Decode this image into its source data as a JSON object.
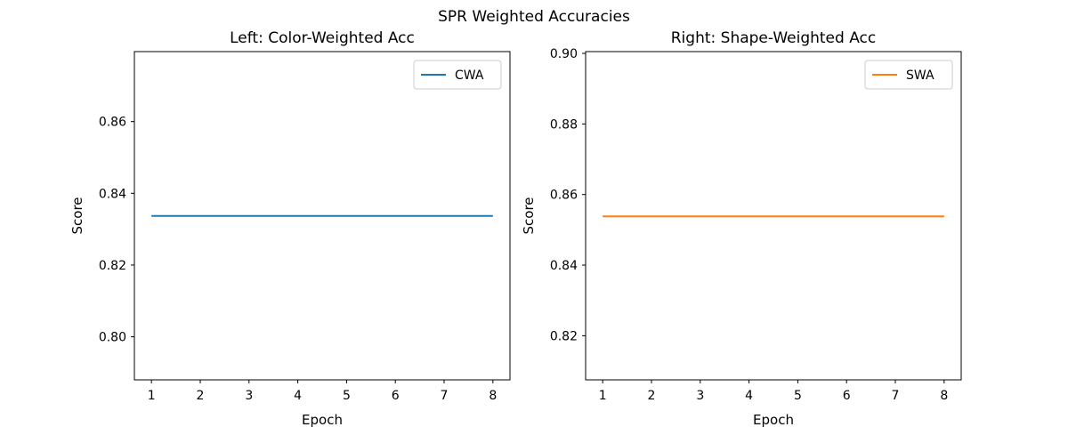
{
  "figure": {
    "suptitle": "SPR Weighted Accuracies"
  },
  "chart_data": [
    {
      "type": "line",
      "title": "Left: Color-Weighted Acc",
      "xlabel": "Epoch",
      "ylabel": "Score",
      "x": [
        1,
        2,
        3,
        4,
        5,
        6,
        7,
        8
      ],
      "xticks": [
        1,
        2,
        3,
        4,
        5,
        6,
        7,
        8
      ],
      "xlim": [
        0.65,
        8.35
      ],
      "ylim": [
        0.788,
        0.8795
      ],
      "yticks": [
        0.8,
        0.82,
        0.84,
        0.86
      ],
      "yticklabels": [
        "0.80",
        "0.82",
        "0.84",
        "0.86"
      ],
      "grid": false,
      "legend": "upper right",
      "series": [
        {
          "name": "CWA",
          "color": "#1f77b4",
          "values": [
            0.8337,
            0.8337,
            0.8337,
            0.8337,
            0.8337,
            0.8337,
            0.8337,
            0.8337
          ]
        }
      ]
    },
    {
      "type": "line",
      "title": "Right: Shape-Weighted Acc",
      "xlabel": "Epoch",
      "ylabel": "Score",
      "x": [
        1,
        2,
        3,
        4,
        5,
        6,
        7,
        8
      ],
      "xticks": [
        1,
        2,
        3,
        4,
        5,
        6,
        7,
        8
      ],
      "xlim": [
        0.65,
        8.35
      ],
      "ylim": [
        0.8075,
        0.9005
      ],
      "yticks": [
        0.82,
        0.84,
        0.86,
        0.88,
        0.9
      ],
      "yticklabels": [
        "0.82",
        "0.84",
        "0.86",
        "0.88",
        "0.90"
      ],
      "grid": false,
      "legend": "upper right",
      "series": [
        {
          "name": "SWA",
          "color": "#ff7f0e",
          "values": [
            0.8538,
            0.8538,
            0.8538,
            0.8538,
            0.8538,
            0.8538,
            0.8538,
            0.8538
          ]
        }
      ]
    }
  ]
}
